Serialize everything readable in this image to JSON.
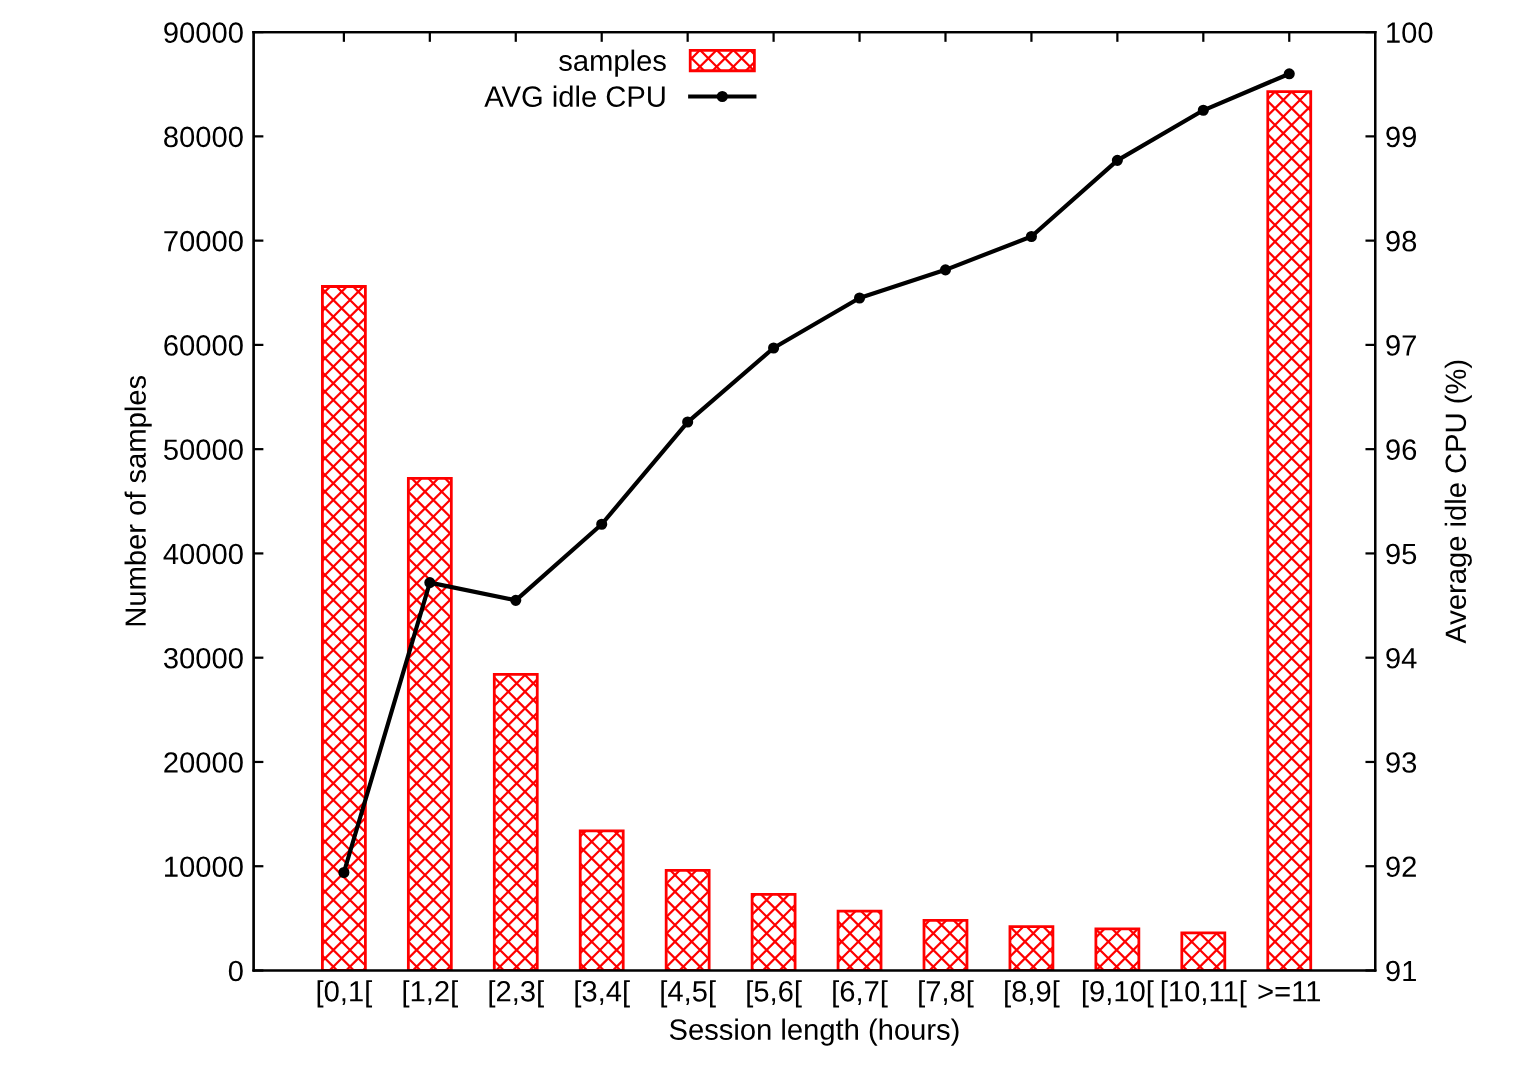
{
  "chart_data": {
    "type": "bar",
    "xlabel": "Session length (hours)",
    "ylabel": "Number of samples",
    "y2label": "Average idle CPU (%)",
    "categories": [
      "[0,1[",
      "[1,2[",
      "[2,3[",
      "[3,4[",
      "[4,5[",
      "[5,6[",
      "[6,7[",
      "[7,8[",
      "[8,9[",
      "[9,10[",
      "[10,11[",
      ">=11"
    ],
    "series": [
      {
        "name": "samples",
        "color": "#ff0000",
        "values": [
          65600,
          47200,
          28400,
          13400,
          9600,
          7300,
          5700,
          4800,
          4200,
          4000,
          3600,
          84300
        ]
      },
      {
        "name": "AVG idle CPU",
        "type": "line",
        "axis": "y2",
        "color": "#000000",
        "marker": "circle",
        "values": [
          91.94,
          94.72,
          94.55,
          95.28,
          96.26,
          96.97,
          97.45,
          97.72,
          98.04,
          98.77,
          99.25,
          99.6
        ]
      }
    ],
    "ylim": [
      0,
      90000
    ],
    "yticks": [
      0,
      10000,
      20000,
      30000,
      40000,
      50000,
      60000,
      70000,
      80000,
      90000
    ],
    "y2lim": [
      91,
      100
    ],
    "y2ticks": [
      91,
      92,
      93,
      94,
      95,
      96,
      97,
      98,
      99,
      100
    ],
    "legend": "top left",
    "grid": false
  }
}
